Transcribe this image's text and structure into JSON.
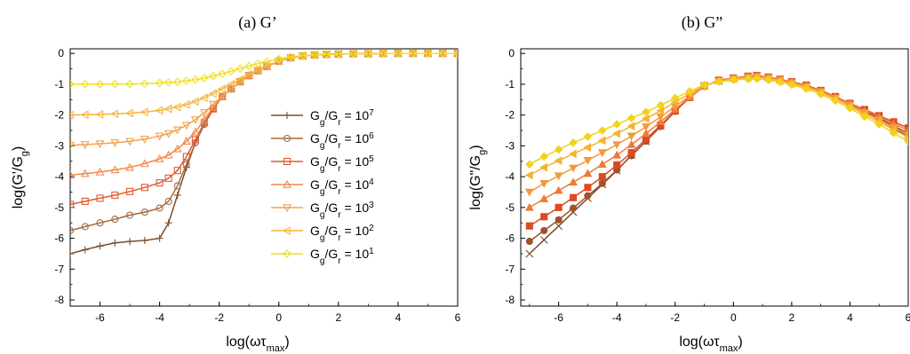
{
  "chart_data": [
    {
      "type": "line",
      "title": "(a) G’",
      "xlabel": "log(ωτmax)",
      "ylabel": "log(G'/Gg)",
      "xlim": [
        -7,
        6
      ],
      "ylim": [
        -8.2,
        0.15
      ],
      "xticks": [
        -6,
        -4,
        -2,
        0,
        2,
        4,
        6
      ],
      "yticks": [
        0,
        -1,
        -2,
        -3,
        -4,
        -5,
        -6,
        -7,
        -8
      ],
      "legend_position": "center",
      "grid": false,
      "series": [
        {
          "name": "Gg/Gr = 107",
          "ratio_exp": "7",
          "color": "#7a4e2c",
          "marker": "plus",
          "x": [
            -7,
            -6.5,
            -6,
            -5.5,
            -5,
            -4.5,
            -4,
            -3.7,
            -3.4,
            -3.1,
            -2.8,
            -2.5,
            -2.2,
            -1.9,
            -1.6,
            -1.3,
            -1,
            -0.7,
            -0.4,
            0,
            0.4,
            0.8,
            1.2,
            1.6,
            2,
            2.5,
            3,
            3.5,
            4,
            4.5,
            5,
            5.5,
            6
          ],
          "y": [
            -6.5,
            -6.37,
            -6.25,
            -6.15,
            -6.1,
            -6.07,
            -6.0,
            -5.5,
            -4.6,
            -3.7,
            -2.9,
            -2.3,
            -1.8,
            -1.4,
            -1.15,
            -0.92,
            -0.72,
            -0.56,
            -0.42,
            -0.25,
            -0.14,
            -0.08,
            -0.05,
            -0.03,
            -0.02,
            -0.01,
            -0.01,
            0,
            0,
            0,
            0,
            0,
            0
          ]
        },
        {
          "name": "Gg/Gr = 106",
          "ratio_exp": "6",
          "color": "#a66a3f",
          "marker": "circle",
          "x": [
            -7,
            -6.5,
            -6,
            -5.5,
            -5,
            -4.5,
            -4,
            -3.7,
            -3.4,
            -3.1,
            -2.8,
            -2.5,
            -2.2,
            -1.9,
            -1.6,
            -1.3,
            -1,
            -0.7,
            -0.4,
            0,
            0.4,
            0.8,
            1.2,
            1.6,
            2,
            2.5,
            3,
            3.5,
            4,
            4.5,
            5,
            5.5,
            6
          ],
          "y": [
            -5.75,
            -5.62,
            -5.5,
            -5.38,
            -5.25,
            -5.15,
            -5.02,
            -4.8,
            -4.3,
            -3.6,
            -2.9,
            -2.3,
            -1.8,
            -1.4,
            -1.15,
            -0.92,
            -0.72,
            -0.56,
            -0.42,
            -0.25,
            -0.14,
            -0.08,
            -0.05,
            -0.03,
            -0.02,
            -0.01,
            -0.01,
            0,
            0,
            0,
            0,
            0,
            0
          ]
        },
        {
          "name": "Gg/Gr = 105",
          "ratio_exp": "5",
          "color": "#e05a2f",
          "marker": "square",
          "x": [
            -7,
            -6.5,
            -6,
            -5.5,
            -5,
            -4.5,
            -4,
            -3.7,
            -3.4,
            -3.1,
            -2.8,
            -2.5,
            -2.2,
            -1.9,
            -1.6,
            -1.3,
            -1,
            -0.7,
            -0.4,
            0,
            0.4,
            0.8,
            1.2,
            1.6,
            2,
            2.5,
            3,
            3.5,
            4,
            4.5,
            5,
            5.5,
            6
          ],
          "y": [
            -4.9,
            -4.8,
            -4.7,
            -4.6,
            -4.48,
            -4.35,
            -4.2,
            -4.05,
            -3.8,
            -3.35,
            -2.8,
            -2.25,
            -1.8,
            -1.4,
            -1.15,
            -0.92,
            -0.72,
            -0.56,
            -0.42,
            -0.25,
            -0.14,
            -0.08,
            -0.05,
            -0.03,
            -0.02,
            -0.01,
            -0.01,
            0,
            0,
            0,
            0,
            0,
            0
          ]
        },
        {
          "name": "Gg/Gr = 104",
          "ratio_exp": "4",
          "color": "#f0894a",
          "marker": "triangle-up",
          "x": [
            -7,
            -6.5,
            -6,
            -5.5,
            -5,
            -4.5,
            -4,
            -3.7,
            -3.4,
            -3.1,
            -2.8,
            -2.5,
            -2.2,
            -1.9,
            -1.6,
            -1.3,
            -1,
            -0.7,
            -0.4,
            0,
            0.4,
            0.8,
            1.2,
            1.6,
            2,
            2.5,
            3,
            3.5,
            4,
            4.5,
            5,
            5.5,
            6
          ],
          "y": [
            -3.95,
            -3.9,
            -3.85,
            -3.78,
            -3.7,
            -3.58,
            -3.42,
            -3.3,
            -3.1,
            -2.85,
            -2.55,
            -2.15,
            -1.75,
            -1.4,
            -1.15,
            -0.92,
            -0.72,
            -0.56,
            -0.42,
            -0.25,
            -0.14,
            -0.08,
            -0.05,
            -0.03,
            -0.02,
            -0.01,
            -0.01,
            0,
            0,
            0,
            0,
            0,
            0
          ]
        },
        {
          "name": "Gg/Gr = 103",
          "ratio_exp": "3",
          "color": "#f2a24e",
          "marker": "triangle-down",
          "x": [
            -7,
            -6.5,
            -6,
            -5.5,
            -5,
            -4.5,
            -4,
            -3.7,
            -3.4,
            -3.1,
            -2.8,
            -2.5,
            -2.2,
            -1.9,
            -1.6,
            -1.3,
            -1,
            -0.7,
            -0.4,
            0,
            0.4,
            0.8,
            1.2,
            1.6,
            2,
            2.5,
            3,
            3.5,
            4,
            4.5,
            5,
            5.5,
            6
          ],
          "y": [
            -2.98,
            -2.96,
            -2.93,
            -2.9,
            -2.85,
            -2.78,
            -2.68,
            -2.6,
            -2.48,
            -2.33,
            -2.15,
            -1.92,
            -1.65,
            -1.38,
            -1.15,
            -0.92,
            -0.72,
            -0.56,
            -0.42,
            -0.25,
            -0.14,
            -0.08,
            -0.05,
            -0.03,
            -0.02,
            -0.01,
            -0.01,
            0,
            0,
            0,
            0,
            0,
            0
          ]
        },
        {
          "name": "Gg/Gr = 102",
          "ratio_exp": "2",
          "color": "#f5b53a",
          "marker": "triangle-left",
          "x": [
            -7,
            -6.5,
            -6,
            -5.5,
            -5,
            -4.5,
            -4,
            -3.7,
            -3.4,
            -3.1,
            -2.8,
            -2.5,
            -2.2,
            -1.9,
            -1.6,
            -1.3,
            -1,
            -0.7,
            -0.4,
            0,
            0.4,
            0.8,
            1.2,
            1.6,
            2,
            2.5,
            3,
            3.5,
            4,
            4.5,
            5,
            5.5,
            6
          ],
          "y": [
            -2.0,
            -1.99,
            -1.98,
            -1.96,
            -1.94,
            -1.9,
            -1.85,
            -1.8,
            -1.74,
            -1.66,
            -1.56,
            -1.44,
            -1.3,
            -1.15,
            -1.0,
            -0.85,
            -0.68,
            -0.53,
            -0.4,
            -0.25,
            -0.14,
            -0.08,
            -0.05,
            -0.03,
            -0.02,
            -0.01,
            -0.01,
            0,
            0,
            0,
            0,
            0,
            0
          ]
        },
        {
          "name": "Gg/Gr = 101",
          "ratio_exp": "1",
          "color": "#f0e11e",
          "marker": "diamond",
          "x": [
            -7,
            -6.5,
            -6,
            -5.5,
            -5,
            -4.5,
            -4,
            -3.7,
            -3.4,
            -3.1,
            -2.8,
            -2.5,
            -2.2,
            -1.9,
            -1.6,
            -1.3,
            -1,
            -0.7,
            -0.4,
            0,
            0.4,
            0.8,
            1.2,
            1.6,
            2,
            2.5,
            3,
            3.5,
            4,
            4.5,
            5,
            5.5,
            6
          ],
          "y": [
            -1.0,
            -1.0,
            -1.0,
            -0.99,
            -0.99,
            -0.98,
            -0.96,
            -0.94,
            -0.92,
            -0.89,
            -0.85,
            -0.8,
            -0.73,
            -0.66,
            -0.58,
            -0.49,
            -0.41,
            -0.33,
            -0.26,
            -0.18,
            -0.11,
            -0.07,
            -0.04,
            -0.02,
            -0.02,
            -0.01,
            -0.01,
            0,
            0,
            0,
            0,
            0,
            0
          ]
        }
      ]
    },
    {
      "type": "line",
      "title": "(b) G”",
      "xlabel": "log(ωτmax)",
      "ylabel": "log(G\"/Gg)",
      "xlim": [
        -7.3,
        6
      ],
      "ylim": [
        -8.2,
        0.15
      ],
      "xticks": [
        -6,
        -4,
        -2,
        0,
        2,
        4,
        6
      ],
      "yticks": [
        0,
        -1,
        -2,
        -3,
        -4,
        -5,
        -6,
        -7,
        -8
      ],
      "grid": false,
      "series": [
        {
          "name": "Gg/Gr = 107",
          "color": "#7a4e2c",
          "marker": "x",
          "x": [
            -7,
            -6.5,
            -6,
            -5.5,
            -5,
            -4.5,
            -4,
            -3.5,
            -3,
            -2.5,
            -2,
            -1.5,
            -1,
            -0.5,
            0,
            0.5,
            0.8,
            1.2,
            1.6,
            2,
            2.5,
            3,
            3.5,
            4,
            4.5,
            5,
            5.5,
            6
          ],
          "y": [
            -6.5,
            -6.05,
            -5.6,
            -5.15,
            -4.7,
            -4.25,
            -3.8,
            -3.3,
            -2.85,
            -2.35,
            -1.85,
            -1.4,
            -1.05,
            -0.88,
            -0.8,
            -0.75,
            -0.72,
            -0.78,
            -0.85,
            -0.93,
            -1.05,
            -1.22,
            -1.42,
            -1.65,
            -1.9,
            -2.15,
            -2.42,
            -2.7
          ]
        },
        {
          "name": "Gg/Gr = 106",
          "color": "#a0502a",
          "marker": "circle",
          "x": [
            -7,
            -6.5,
            -6,
            -5.5,
            -5,
            -4.5,
            -4,
            -3.5,
            -3,
            -2.5,
            -2,
            -1.5,
            -1,
            -0.5,
            0,
            0.5,
            0.8,
            1.2,
            1.6,
            2,
            2.5,
            3,
            3.5,
            4,
            4.5,
            5,
            5.5,
            6
          ],
          "y": [
            -6.1,
            -5.75,
            -5.4,
            -5.02,
            -4.62,
            -4.22,
            -3.78,
            -3.32,
            -2.85,
            -2.37,
            -1.88,
            -1.43,
            -1.06,
            -0.88,
            -0.8,
            -0.75,
            -0.72,
            -0.78,
            -0.85,
            -0.93,
            -1.05,
            -1.22,
            -1.42,
            -1.65,
            -1.88,
            -2.1,
            -2.35,
            -2.6
          ]
        },
        {
          "name": "Gg/Gr = 105",
          "color": "#dd4a22",
          "marker": "square",
          "x": [
            -7,
            -6.5,
            -6,
            -5.5,
            -5,
            -4.5,
            -4,
            -3.5,
            -3,
            -2.5,
            -2,
            -1.5,
            -1,
            -0.5,
            0,
            0.5,
            0.8,
            1.2,
            1.6,
            2,
            2.5,
            3,
            3.5,
            4,
            4.5,
            5,
            5.5,
            6
          ],
          "y": [
            -5.6,
            -5.3,
            -5.0,
            -4.68,
            -4.35,
            -4.0,
            -3.62,
            -3.22,
            -2.78,
            -2.33,
            -1.87,
            -1.43,
            -1.06,
            -0.87,
            -0.8,
            -0.74,
            -0.72,
            -0.77,
            -0.84,
            -0.92,
            -1.03,
            -1.2,
            -1.4,
            -1.62,
            -1.82,
            -2.02,
            -2.22,
            -2.42
          ]
        },
        {
          "name": "Gg/Gr = 104",
          "color": "#ee7a36",
          "marker": "triangle-up",
          "x": [
            -7,
            -6.5,
            -6,
            -5.5,
            -5,
            -4.5,
            -4,
            -3.5,
            -3,
            -2.5,
            -2,
            -1.5,
            -1,
            -0.5,
            0,
            0.5,
            0.8,
            1.2,
            1.6,
            2,
            2.5,
            3,
            3.5,
            4,
            4.5,
            5,
            5.5,
            6
          ],
          "y": [
            -5.0,
            -4.72,
            -4.45,
            -4.18,
            -3.9,
            -3.6,
            -3.3,
            -2.96,
            -2.6,
            -2.22,
            -1.82,
            -1.42,
            -1.06,
            -0.88,
            -0.8,
            -0.75,
            -0.73,
            -0.78,
            -0.85,
            -0.93,
            -1.05,
            -1.22,
            -1.42,
            -1.62,
            -1.85,
            -2.05,
            -2.28,
            -2.5
          ]
        },
        {
          "name": "Gg/Gr = 103",
          "color": "#f29a3e",
          "marker": "triangle-down",
          "x": [
            -7,
            -6.5,
            -6,
            -5.5,
            -5,
            -4.5,
            -4,
            -3.5,
            -3,
            -2.5,
            -2,
            -1.5,
            -1,
            -0.5,
            0,
            0.5,
            0.8,
            1.2,
            1.6,
            2,
            2.5,
            3,
            3.5,
            4,
            4.5,
            5,
            5.5,
            6
          ],
          "y": [
            -4.5,
            -4.22,
            -3.97,
            -3.72,
            -3.47,
            -3.22,
            -2.96,
            -2.68,
            -2.38,
            -2.06,
            -1.72,
            -1.38,
            -1.06,
            -0.9,
            -0.82,
            -0.77,
            -0.75,
            -0.8,
            -0.87,
            -0.95,
            -1.07,
            -1.24,
            -1.45,
            -1.67,
            -1.92,
            -2.15,
            -2.4,
            -2.65
          ]
        },
        {
          "name": "Gg/Gr = 102",
          "color": "#f5b430",
          "marker": "triangle-left",
          "x": [
            -7,
            -6.5,
            -6,
            -5.5,
            -5,
            -4.5,
            -4,
            -3.5,
            -3,
            -2.5,
            -2,
            -1.5,
            -1,
            -0.5,
            0,
            0.5,
            0.8,
            1.2,
            1.6,
            2,
            2.5,
            3,
            3.5,
            4,
            4.5,
            5,
            5.5,
            6
          ],
          "y": [
            -3.95,
            -3.7,
            -3.48,
            -3.26,
            -3.05,
            -2.83,
            -2.6,
            -2.36,
            -2.12,
            -1.86,
            -1.58,
            -1.3,
            -1.04,
            -0.9,
            -0.83,
            -0.79,
            -0.77,
            -0.82,
            -0.89,
            -0.98,
            -1.1,
            -1.27,
            -1.48,
            -1.72,
            -1.98,
            -2.22,
            -2.48,
            -2.72
          ]
        },
        {
          "name": "Gg/Gr = 101",
          "color": "#f2d21a",
          "marker": "diamond",
          "x": [
            -7,
            -6.5,
            -6,
            -5.5,
            -5,
            -4.5,
            -4,
            -3.5,
            -3,
            -2.5,
            -2,
            -1.5,
            -1,
            -0.5,
            0,
            0.5,
            0.8,
            1.2,
            1.6,
            2,
            2.5,
            3,
            3.5,
            4,
            4.5,
            5,
            5.5,
            6
          ],
          "y": [
            -3.6,
            -3.35,
            -3.12,
            -2.9,
            -2.7,
            -2.5,
            -2.3,
            -2.1,
            -1.9,
            -1.68,
            -1.45,
            -1.23,
            -1.02,
            -0.92,
            -0.86,
            -0.83,
            -0.82,
            -0.86,
            -0.93,
            -1.02,
            -1.15,
            -1.32,
            -1.54,
            -1.78,
            -2.05,
            -2.3,
            -2.58,
            -2.85
          ]
        }
      ]
    }
  ]
}
